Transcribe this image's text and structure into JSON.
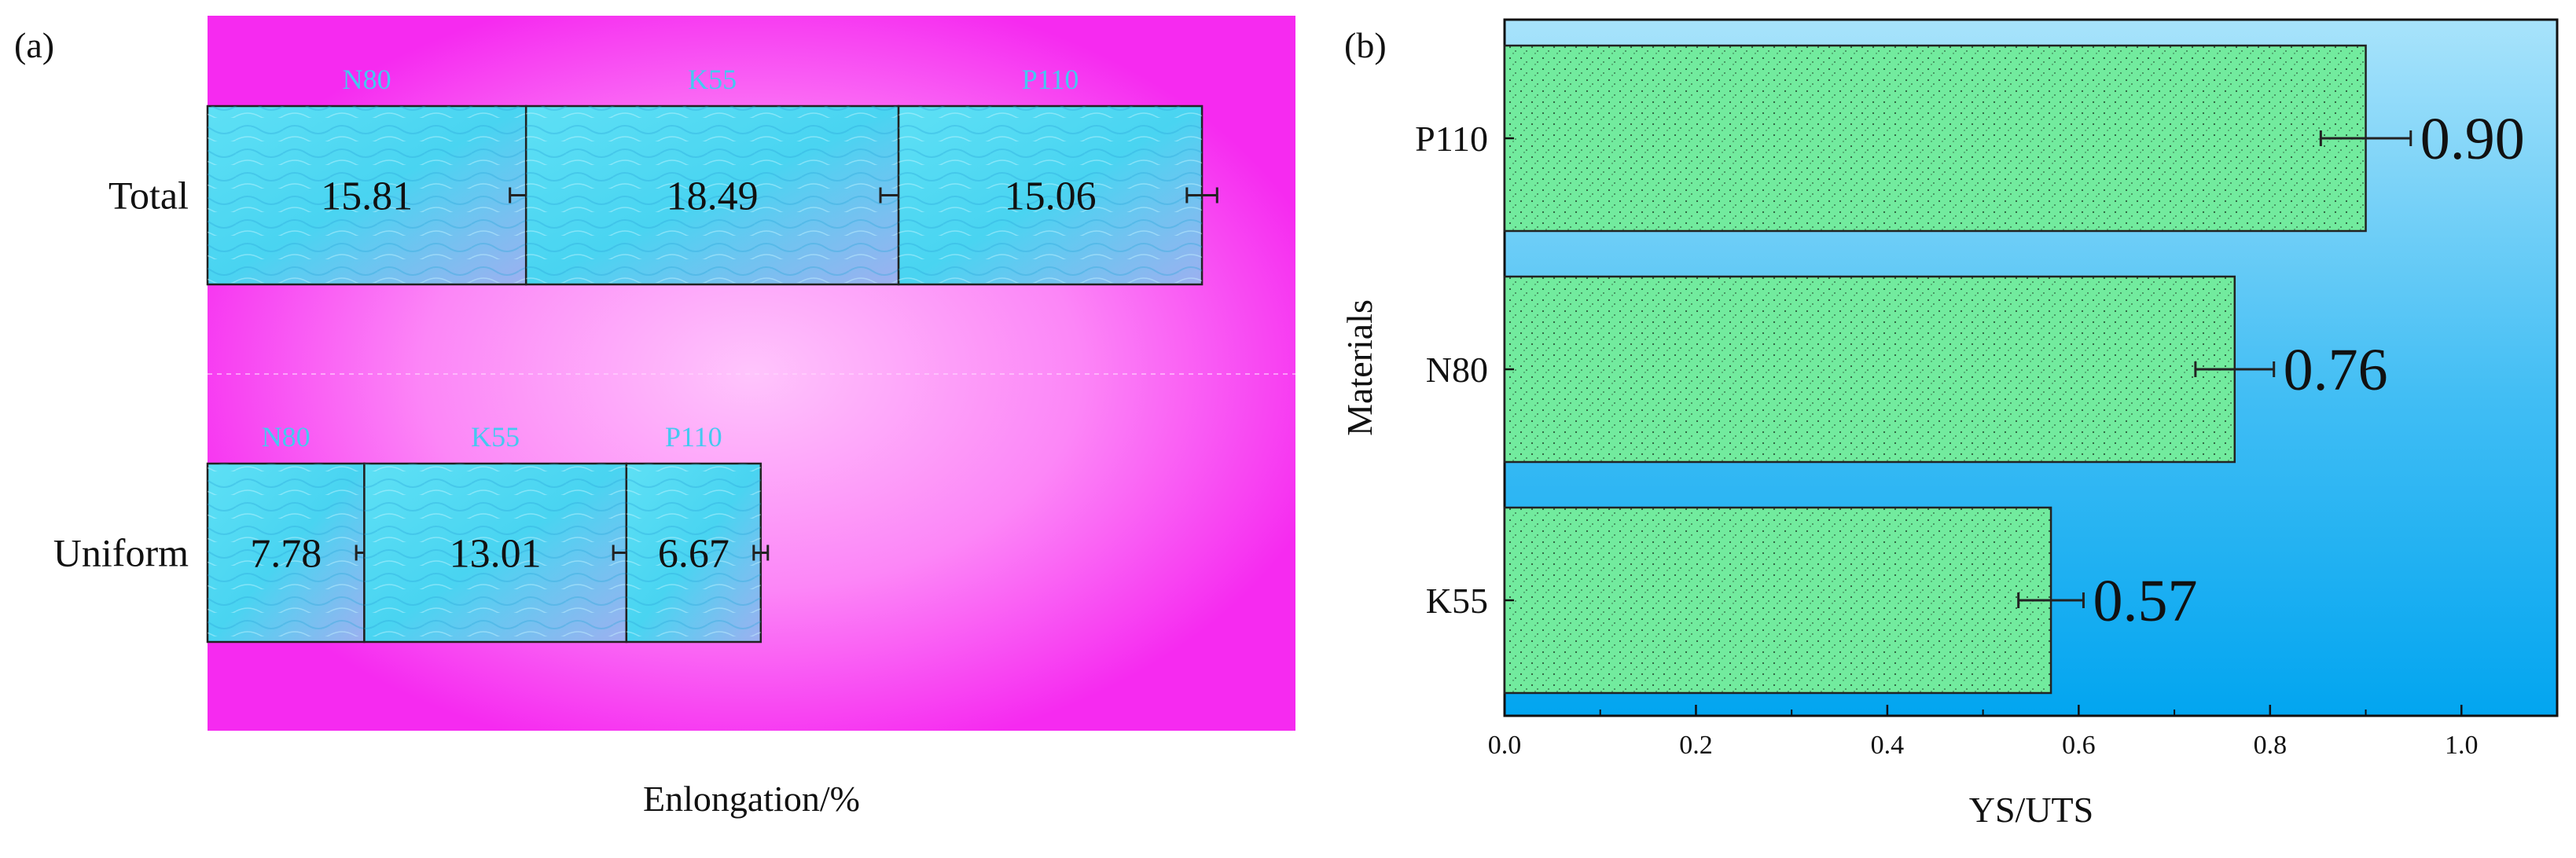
{
  "chart_data": [
    {
      "panel_label": "(a)",
      "type": "bar",
      "orientation": "horizontal",
      "stacked": true,
      "title": "",
      "xlabel": "Enlongation/%",
      "ylabel": "",
      "xlim": [
        0,
        54
      ],
      "groups": [
        {
          "name": "Total",
          "segments": [
            {
              "name": "N80",
              "value": 15.81,
              "value_label": "15.81",
              "error": 0.8
            },
            {
              "name": "K55",
              "value": 18.49,
              "value_label": "18.49",
              "error": 0.9
            },
            {
              "name": "P110",
              "value": 15.06,
              "value_label": "15.06",
              "error": 0.75
            }
          ]
        },
        {
          "name": "Uniform",
          "segments": [
            {
              "name": "N80",
              "value": 7.78,
              "value_label": "7.78",
              "error": 0.4
            },
            {
              "name": "K55",
              "value": 13.01,
              "value_label": "13.01",
              "error": 0.65
            },
            {
              "name": "P110",
              "value": 6.67,
              "value_label": "6.67",
              "error": 0.35
            }
          ]
        }
      ],
      "colors": {
        "background_edge": "#f62af0",
        "background_center": "#ffb8fb",
        "bar_fill": "#4fd8f2",
        "segment_label": "#44c9f0",
        "error_bar": "#222222"
      }
    },
    {
      "panel_label": "(b)",
      "type": "bar",
      "orientation": "horizontal",
      "title": "",
      "xlabel": "YS/UTS",
      "ylabel": "Materials",
      "xlim": [
        0,
        1.1
      ],
      "xticks": [
        "0.0",
        "0.2",
        "0.4",
        "0.6",
        "0.8",
        "1.0"
      ],
      "xtick_values": [
        0,
        0.2,
        0.4,
        0.6,
        0.8,
        1.0
      ],
      "categories": [
        "P110",
        "N80",
        "K55"
      ],
      "values": [
        0.9,
        0.763,
        0.571
      ],
      "value_labels": [
        "0.90",
        "0.76",
        "0.57"
      ],
      "errors": [
        0.047,
        0.041,
        0.034
      ],
      "colors": {
        "background_top": "#a8e3fb",
        "background_bottom": "#02a5f0",
        "bar_fill": "#72eb9e",
        "error_bar": "#222222"
      }
    }
  ]
}
